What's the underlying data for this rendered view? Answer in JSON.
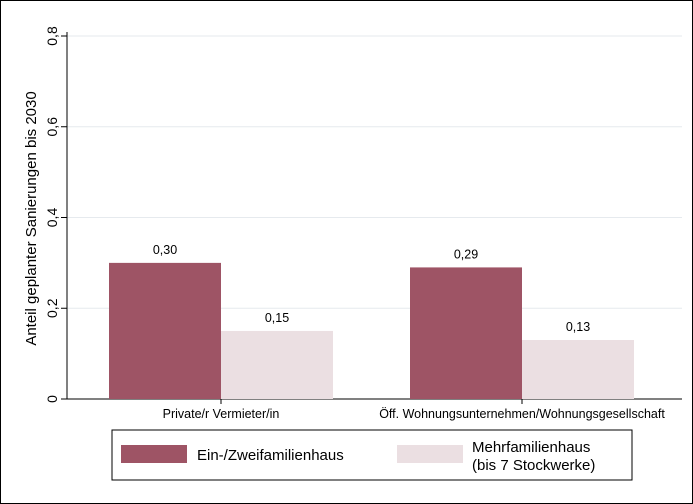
{
  "chart_data": {
    "type": "bar",
    "ylabel": "Anteil geplanter Sanierungen bis 2030",
    "ylim": [
      0,
      0.8
    ],
    "yticks": [
      "0",
      "0,2",
      "0,4",
      "0,6",
      "0,8"
    ],
    "grid": true,
    "categories": [
      "Private/r Vermieter/in",
      "Öff. Wohnungsunternehmen/Wohnungsgesellschaft"
    ],
    "series": [
      {
        "name": "Ein-/Zweifamilienhaus",
        "color": "#9e5465",
        "values": [
          0.3,
          0.29
        ],
        "labels": [
          "0,30",
          "0,29"
        ]
      },
      {
        "name": "Mehrfamilienhaus (bis 7 Stockwerke)",
        "legend_lines": [
          "Mehrfamilienhaus",
          "(bis 7 Stockwerke)"
        ],
        "color": "#ebdfe2",
        "values": [
          0.15,
          0.13
        ],
        "labels": [
          "0,15",
          "0,13"
        ]
      }
    ],
    "legend_position": "bottom"
  }
}
